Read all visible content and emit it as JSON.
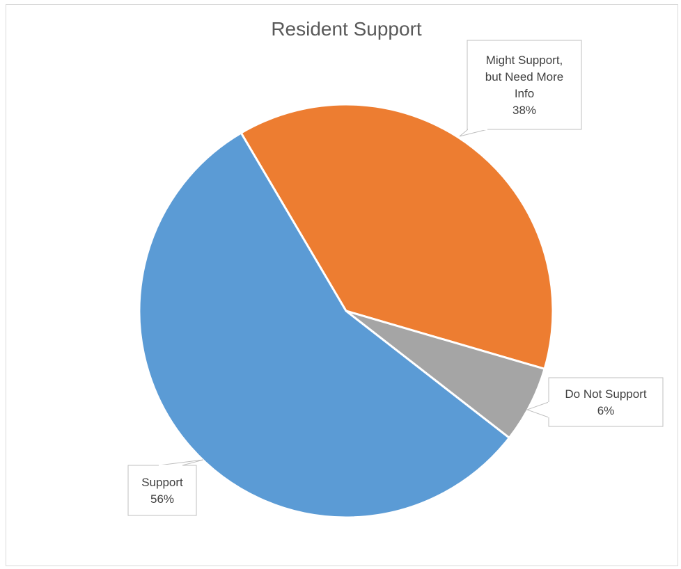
{
  "chart_data": {
    "type": "pie",
    "title": "Resident Support",
    "slices": [
      {
        "name": "Support",
        "label_lines": [
          "Support"
        ],
        "percent_label": "56%",
        "value": 56,
        "color": "#5b9bd5"
      },
      {
        "name": "Might Support, but Need More Info",
        "label_lines": [
          "Might Support,",
          "but Need More",
          "Info"
        ],
        "percent_label": "38%",
        "value": 38,
        "color": "#ed7d31"
      },
      {
        "name": "Do Not Support",
        "label_lines": [
          "Do Not Support"
        ],
        "percent_label": "6%",
        "value": 6,
        "color": "#a5a5a5"
      }
    ],
    "legend": "none",
    "data_labels": "callout"
  }
}
